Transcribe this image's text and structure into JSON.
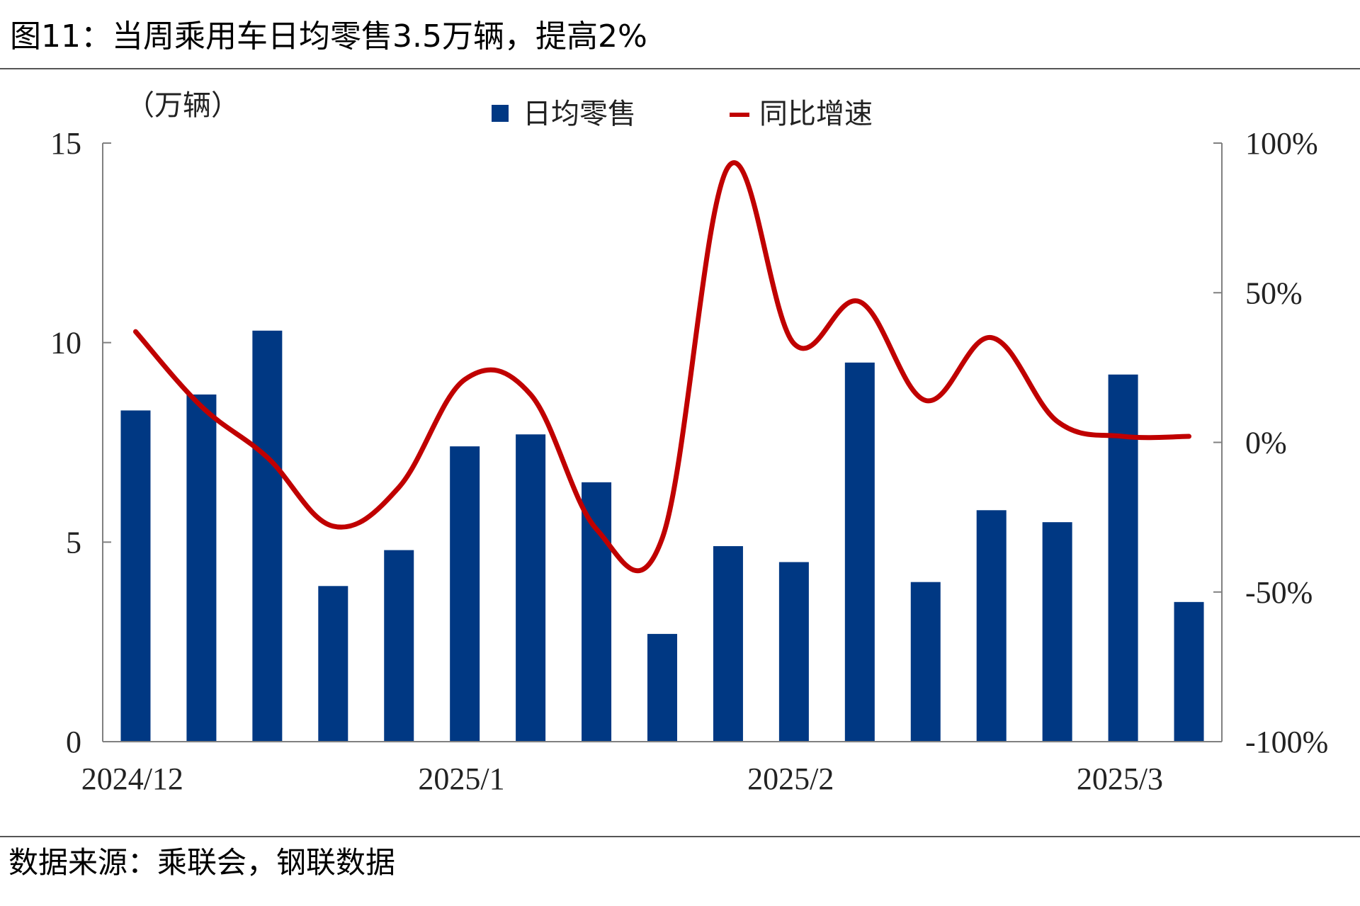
{
  "title": "图11：当周乘用车日均零售3.5万辆，提高2%",
  "source": "数据来源：乘联会，钢联数据",
  "colors": {
    "bar": "#003883",
    "line": "#c00000",
    "axis": "#808080",
    "text": "#222222"
  },
  "chart_data": {
    "type": "bar",
    "y_unit_label": "（万辆）",
    "left_axis": {
      "range": [
        0,
        15
      ],
      "ticks": [
        0,
        5,
        10,
        15
      ],
      "tick_labels": [
        "0",
        "5",
        "10",
        "15"
      ]
    },
    "right_axis": {
      "range": [
        -100,
        100
      ],
      "ticks": [
        -100,
        -50,
        0,
        50,
        100
      ],
      "tick_labels": [
        "-100%",
        "-50%",
        "0%",
        "50%",
        "100%"
      ]
    },
    "x_tick_labels": [
      {
        "label": "2024/12",
        "index": 0
      },
      {
        "label": "2025/1",
        "index": 5
      },
      {
        "label": "2025/2",
        "index": 10
      },
      {
        "label": "2025/3",
        "index": 15
      }
    ],
    "series": [
      {
        "name": "日均零售",
        "kind": "bar",
        "axis": "left",
        "values": [
          8.3,
          8.7,
          10.3,
          3.9,
          4.8,
          7.4,
          7.7,
          6.5,
          2.7,
          4.9,
          4.5,
          9.5,
          4.0,
          5.8,
          5.5,
          9.2,
          3.5
        ]
      },
      {
        "name": "同比增速",
        "kind": "line",
        "axis": "right",
        "values": [
          37,
          12,
          -5,
          -28,
          -15,
          21,
          16,
          -29,
          -32,
          92,
          33,
          47,
          14,
          35,
          7,
          2,
          2
        ]
      }
    ]
  }
}
